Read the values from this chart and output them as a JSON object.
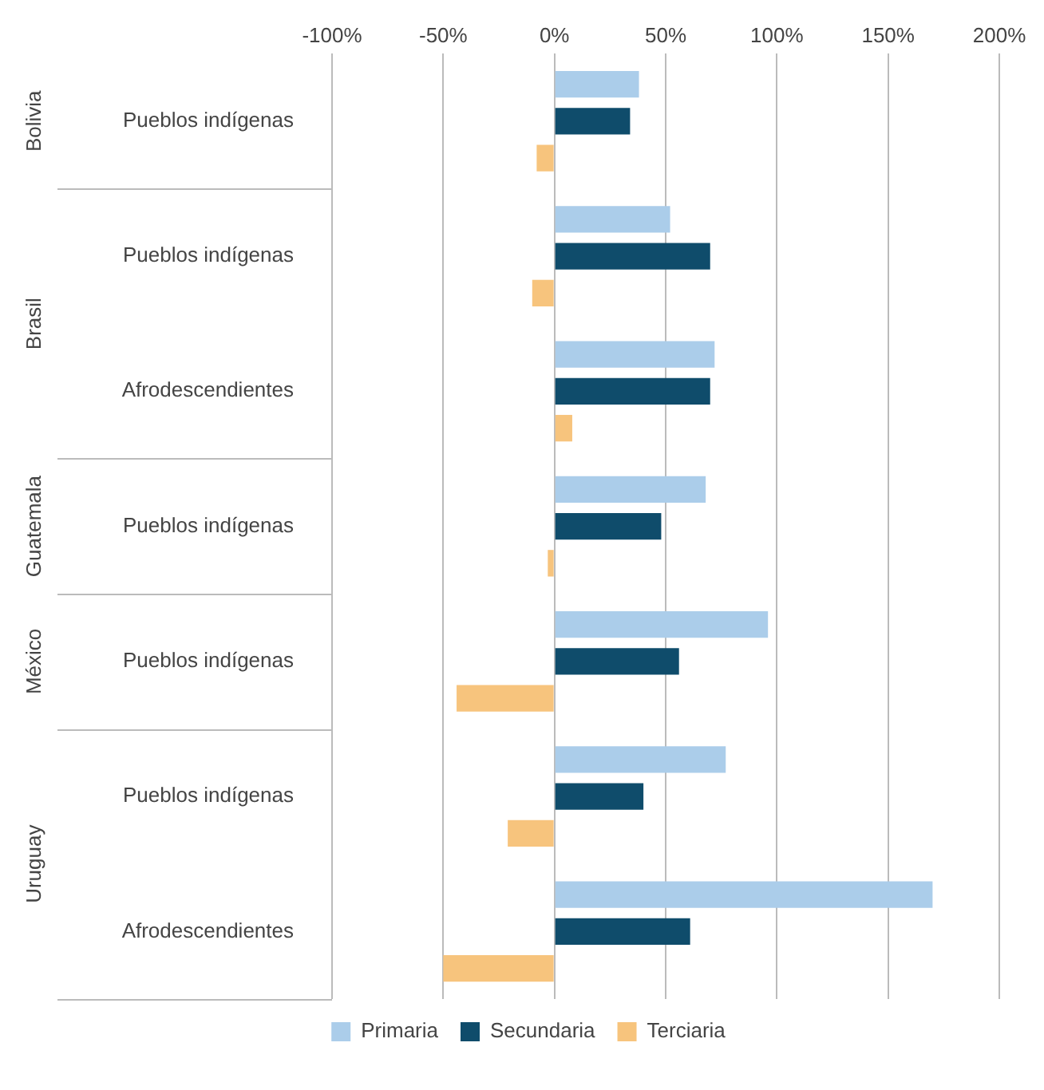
{
  "chart_data": {
    "type": "bar",
    "orientation": "horizontal",
    "categories": [
      "Pueblos indígenas",
      "Pueblos indígenas",
      "Afrodescendientes",
      "Pueblos indígenas",
      "Pueblos indígenas",
      "Pueblos indígenas",
      "Afrodescendientes"
    ],
    "series": [
      {
        "name": "Primaria",
        "color": "#abcdea",
        "values": [
          38,
          52,
          72,
          68,
          96,
          77,
          170
        ]
      },
      {
        "name": "Secundaria",
        "color": "#0f4c6b",
        "values": [
          34,
          70,
          70,
          48,
          56,
          40,
          61
        ]
      },
      {
        "name": "Terciaria",
        "color": "#f7c47d",
        "values": [
          -8,
          -10,
          8,
          -3,
          -44,
          -21,
          -50
        ]
      }
    ],
    "xlim": [
      -100,
      200
    ],
    "xticks": [
      {
        "value": -100,
        "label": "-100%"
      },
      {
        "value": -50,
        "label": "-50%"
      },
      {
        "value": 0,
        "label": "0%"
      },
      {
        "value": 50,
        "label": "50%"
      },
      {
        "value": 100,
        "label": "100%"
      },
      {
        "value": 150,
        "label": "150%"
      },
      {
        "value": 200,
        "label": "200%"
      }
    ],
    "annotations": [
      "Bolivia",
      "Brasil",
      "Guatemala",
      "México",
      "Uruguay"
    ],
    "grid": "x",
    "legend": "bottom"
  }
}
